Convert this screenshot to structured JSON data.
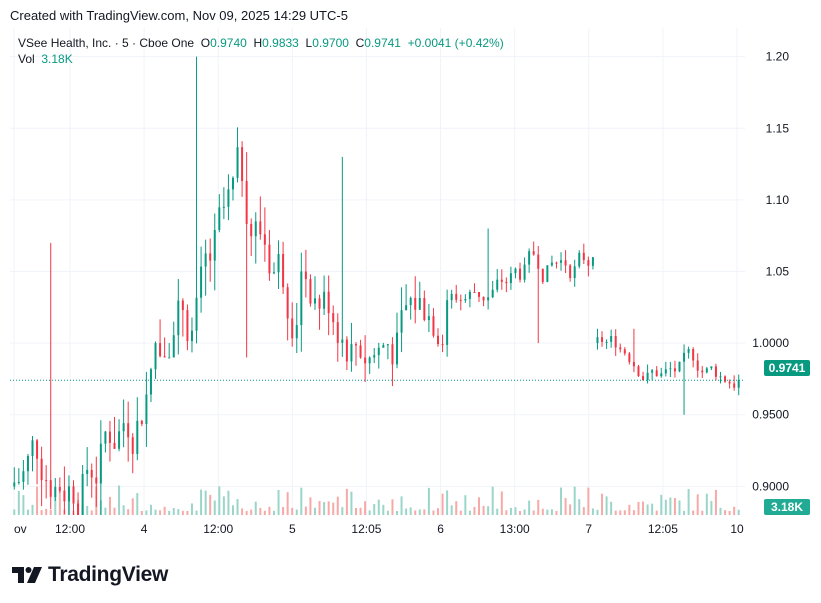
{
  "caption": "Created with TradingView.com, Nov 09, 2025 14:29 UTC-5",
  "legend": {
    "symbol": "VSee Health, Inc. · 5 · Cboe One",
    "open_label": "O",
    "open": "0.9740",
    "high_label": "H",
    "high": "0.9833",
    "low_label": "L",
    "low": "0.9700",
    "close_label": "C",
    "close": "0.9741",
    "change": "+0.0041 (+0.42%)",
    "vol_label": "Vol",
    "vol": "3.18K"
  },
  "price_tag": "0.9741",
  "vol_tag": "3.18K",
  "brand": "TradingView",
  "colors": {
    "up": "#089981",
    "down": "#f23645",
    "up_vol": "#9bd5c9",
    "down_vol": "#f7a9a7",
    "grid": "#f0f3fa",
    "last_line": "#089981"
  },
  "chart_data": {
    "type": "candlestick",
    "interval": "5",
    "ylim": [
      0.88,
      1.22
    ],
    "y_ticks": [
      "1.20",
      "1.15",
      "1.10",
      "1.05",
      "1.0000",
      "0.9500",
      "0.9000"
    ],
    "x_ticks": [
      "ov",
      "12:00",
      "4",
      "12:00",
      "5",
      "12:05",
      "6",
      "13:00",
      "7",
      "12:05",
      "10"
    ],
    "last_price": 0.9741,
    "sessions": [
      {
        "label": "Nov 3",
        "open": 0.9,
        "high": 1.07,
        "low": 0.88,
        "close": 1.0
      },
      {
        "label": "Nov 4",
        "open": 1.0,
        "high": 1.2,
        "low": 0.99,
        "close": 1.05
      },
      {
        "label": "Nov 5",
        "open": 1.05,
        "high": 1.13,
        "low": 0.97,
        "close": 1.03
      },
      {
        "label": "Nov 6",
        "open": 1.03,
        "high": 1.08,
        "low": 1.0,
        "close": 1.06
      },
      {
        "label": "Nov 7",
        "open": 1.0,
        "high": 1.01,
        "low": 0.95,
        "close": 0.9741
      }
    ]
  }
}
